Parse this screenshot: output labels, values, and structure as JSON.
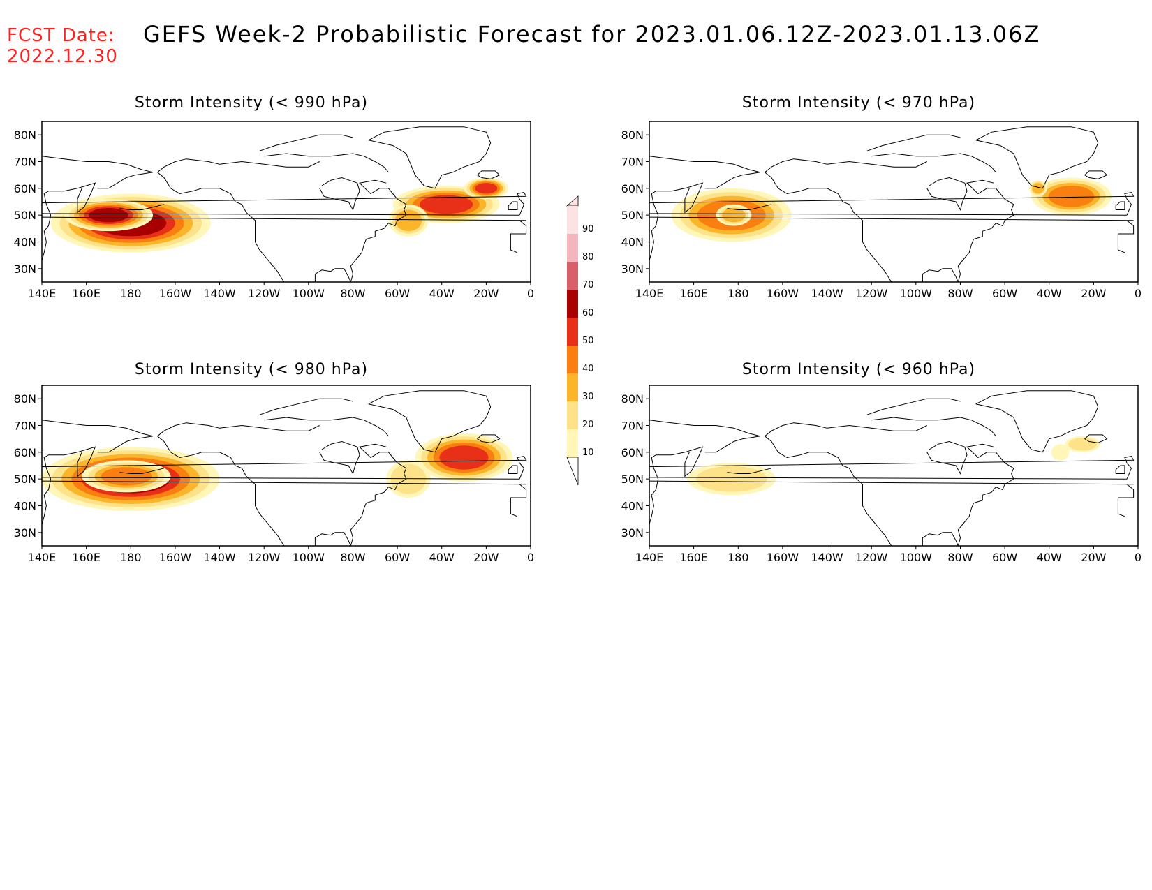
{
  "header": {
    "fcst_label": "FCST Date:",
    "fcst_date": "2022.12.30",
    "title": "GEFS Week-2 Probabilistic Forecast for 2023.01.06.12Z-2023.01.13.06Z"
  },
  "axes": {
    "lon_ticks": [
      "140E",
      "160E",
      "180",
      "160W",
      "140W",
      "120W",
      "100W",
      "80W",
      "60W",
      "40W",
      "20W",
      "0"
    ],
    "lat_ticks": [
      "80N",
      "70N",
      "60N",
      "50N",
      "40N",
      "30N"
    ]
  },
  "colorbar": {
    "levels": [
      "10",
      "20",
      "30",
      "40",
      "50",
      "60",
      "70",
      "80",
      "90"
    ],
    "colors": [
      "#fff6b8",
      "#fde28a",
      "#fbb52a",
      "#f87f10",
      "#e83018",
      "#a80000",
      "#d8606a",
      "#f5b5bc",
      "#fde2e4"
    ]
  },
  "panels": [
    {
      "id": "p990",
      "title": "Storm Intensity (< 990 hPa)",
      "blobs": [
        {
          "cx": 180,
          "cy": 47,
          "rx": 36,
          "ry": 11,
          "peak": 5
        },
        {
          "cx": 170,
          "cy": 50,
          "rx": 20,
          "ry": 6,
          "peak": 5
        },
        {
          "cx": -38,
          "cy": 54,
          "rx": 24,
          "ry": 7,
          "peak": 4
        },
        {
          "cx": -55,
          "cy": 48,
          "rx": 9,
          "ry": 6,
          "peak": 2
        },
        {
          "cx": -20,
          "cy": 60,
          "rx": 10,
          "ry": 4,
          "peak": 4
        }
      ]
    },
    {
      "id": "p970",
      "title": "Storm Intensity (< 970 hPa)",
      "blobs": [
        {
          "cx": 177,
          "cy": 50,
          "rx": 27,
          "ry": 10,
          "peak": 3
        },
        {
          "cx": 178,
          "cy": 50,
          "rx": 8,
          "ry": 4,
          "peak": 2
        },
        {
          "cx": -30,
          "cy": 57,
          "rx": 18,
          "ry": 7,
          "peak": 3
        },
        {
          "cx": -45,
          "cy": 60,
          "rx": 4,
          "ry": 3,
          "peak": 2
        }
      ]
    },
    {
      "id": "p980",
      "title": "Storm Intensity (< 980 hPa)",
      "blobs": [
        {
          "cx": 180,
          "cy": 50,
          "rx": 40,
          "ry": 12,
          "peak": 5
        },
        {
          "cx": 178,
          "cy": 51,
          "rx": 20,
          "ry": 6,
          "peak": 3
        },
        {
          "cx": -30,
          "cy": 58,
          "rx": 22,
          "ry": 9,
          "peak": 4
        },
        {
          "cx": -55,
          "cy": 50,
          "rx": 10,
          "ry": 7,
          "peak": 1
        }
      ]
    },
    {
      "id": "p960",
      "title": "Storm Intensity (< 960 hPa)",
      "blobs": [
        {
          "cx": 177,
          "cy": 50,
          "rx": 20,
          "ry": 6,
          "peak": 1
        },
        {
          "cx": -25,
          "cy": 63,
          "rx": 8,
          "ry": 3,
          "peak": 1
        },
        {
          "cx": -35,
          "cy": 60,
          "rx": 4,
          "ry": 3,
          "peak": 0
        }
      ]
    }
  ]
}
